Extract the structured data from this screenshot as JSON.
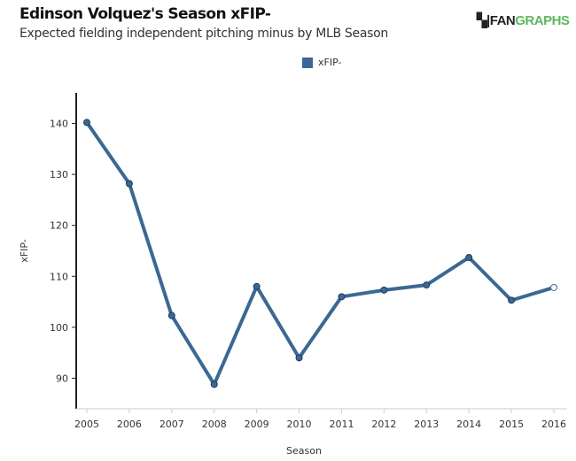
{
  "title": "Edinson Volquez's Season xFIP-",
  "subtitle": "Expected fielding independent pitching minus by MLB Season",
  "logo": {
    "part1": "FAN",
    "part2": "GRAPHS"
  },
  "colors": {
    "series": "#3b6894",
    "logo_green": "#5cb85c"
  },
  "chart_data": {
    "type": "line",
    "xlabel": "Season",
    "ylabel": "xFIP-",
    "x": [
      2005,
      2006,
      2007,
      2008,
      2009,
      2010,
      2011,
      2012,
      2013,
      2014,
      2015,
      2016
    ],
    "series": [
      {
        "name": "xFIP-",
        "values": [
          140.2,
          128.2,
          102.3,
          88.8,
          108.0,
          94.0,
          106.0,
          107.3,
          108.3,
          113.7,
          105.3,
          107.8
        ]
      }
    ],
    "yticks": [
      90,
      100,
      110,
      120,
      130,
      140
    ],
    "ylim": [
      84,
      146
    ],
    "grid": false,
    "legend": "top-center",
    "last_point_hollow": true
  }
}
